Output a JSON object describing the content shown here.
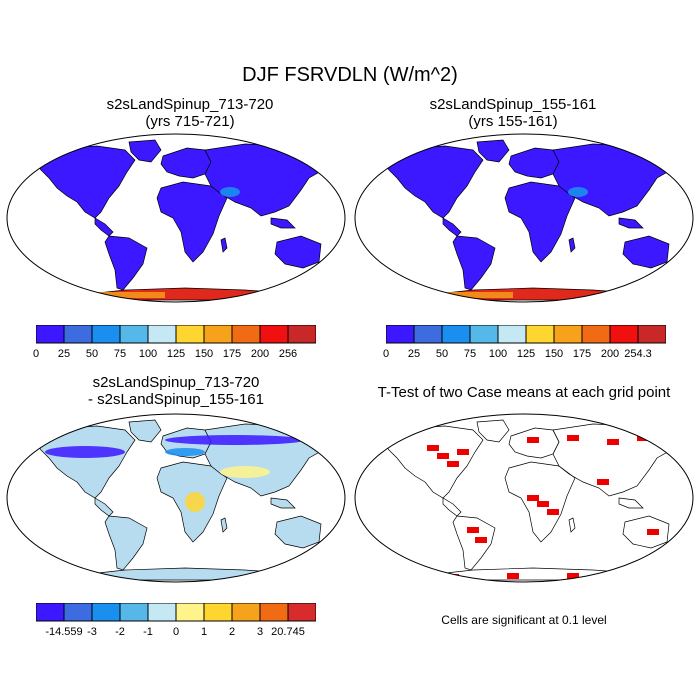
{
  "title": "DJF FSRVDLN (W/m^2)",
  "panels": {
    "top_left": {
      "line1": "s2sLandSpinup_713-720",
      "line2": "(yrs 715-721)"
    },
    "top_right": {
      "line1": "s2sLandSpinup_155-161",
      "line2": "(yrs 155-161)"
    },
    "bottom_left": {
      "line1": "s2sLandSpinup_713-720",
      "line2": "- s2sLandSpinup_155-161"
    },
    "bottom_right": {
      "line1": "T-Test of two Case means at each grid point",
      "note": "Cells are significant at 0.1 level"
    }
  },
  "colorbars": {
    "abs_colors": [
      "#3b18ff",
      "#3c6ce0",
      "#1b8ff0",
      "#56b8e8",
      "#c5e8f5",
      "#ffd530",
      "#f6a21a",
      "#f06b14",
      "#f01010",
      "#c82828"
    ],
    "top_left_labels": [
      "0",
      "25",
      "50",
      "75",
      "100",
      "125",
      "150",
      "175",
      "200",
      "256"
    ],
    "top_right_labels": [
      "0",
      "25",
      "50",
      "75",
      "100",
      "125",
      "150",
      "175",
      "200",
      "254.3"
    ],
    "diff_colors": [
      "#3b18ff",
      "#3c6ce0",
      "#1b8ff0",
      "#56b8e8",
      "#c5e8f5",
      "#fff48a",
      "#ffd530",
      "#f6a21a",
      "#f06b14",
      "#d82b2b"
    ],
    "diff_labels": [
      "-14.559",
      "-3",
      "-2",
      "-1",
      "0",
      "1",
      "2",
      "3",
      "20.745"
    ]
  },
  "colors": {
    "land_low": "#3b18ff",
    "antarctica_high": "#e0281c",
    "ocean": "#ffffff",
    "significant": "#ee0000",
    "diff_land": "#b8dcef"
  }
}
